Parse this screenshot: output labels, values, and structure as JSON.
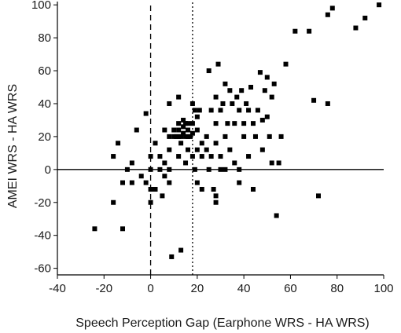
{
  "chart_data": {
    "type": "scatter",
    "title": "",
    "xlabel": "Speech Perception Gap (Earphone WRS - HA WRS)",
    "ylabel": "AMEI WRS - HA WRS",
    "xlim": [
      -40,
      100
    ],
    "ylim": [
      -64,
      102
    ],
    "xticks": [
      -40,
      -20,
      0,
      20,
      40,
      60,
      80,
      100
    ],
    "yticks": [
      -60,
      -40,
      -20,
      0,
      20,
      40,
      60,
      80,
      100
    ],
    "xtick_labels": [
      "-40",
      "-20",
      "0",
      "20",
      "40",
      "60",
      "80",
      "100"
    ],
    "ytick_labels": [
      "-60",
      "-40",
      "-20",
      "0",
      "20",
      "40",
      "60",
      "80",
      "100"
    ],
    "grid": false,
    "reference_lines": [
      {
        "orientation": "horizontal",
        "value": 0,
        "style": "solid"
      },
      {
        "orientation": "vertical",
        "value": 0,
        "style": "dashed"
      },
      {
        "orientation": "vertical",
        "value": 18,
        "style": "dotted"
      }
    ],
    "marker_color": "#000000",
    "points": [
      {
        "x": -24,
        "y": -36
      },
      {
        "x": -12,
        "y": -36
      },
      {
        "x": -16,
        "y": -20
      },
      {
        "x": -16,
        "y": 8
      },
      {
        "x": -14,
        "y": 16
      },
      {
        "x": -12,
        "y": -8
      },
      {
        "x": -10,
        "y": 0
      },
      {
        "x": -8,
        "y": 4
      },
      {
        "x": -8,
        "y": -8
      },
      {
        "x": -6,
        "y": 24
      },
      {
        "x": -4,
        "y": -4
      },
      {
        "x": -2,
        "y": -8
      },
      {
        "x": -2,
        "y": 34
      },
      {
        "x": 0,
        "y": 0
      },
      {
        "x": 0,
        "y": 8
      },
      {
        "x": 0,
        "y": -20
      },
      {
        "x": 0,
        "y": -12
      },
      {
        "x": 2,
        "y": 16
      },
      {
        "x": 2,
        "y": -12
      },
      {
        "x": 4,
        "y": 0
      },
      {
        "x": 4,
        "y": 8
      },
      {
        "x": 5,
        "y": -16
      },
      {
        "x": 6,
        "y": -4
      },
      {
        "x": 6,
        "y": 4
      },
      {
        "x": 6,
        "y": 24
      },
      {
        "x": 8,
        "y": -8
      },
      {
        "x": 8,
        "y": 12
      },
      {
        "x": 8,
        "y": 20
      },
      {
        "x": 8,
        "y": 0
      },
      {
        "x": 8,
        "y": 40
      },
      {
        "x": 9,
        "y": -53
      },
      {
        "x": 10,
        "y": 20
      },
      {
        "x": 10,
        "y": 24
      },
      {
        "x": 11,
        "y": 20
      },
      {
        "x": 12,
        "y": 20
      },
      {
        "x": 12,
        "y": 24
      },
      {
        "x": 12,
        "y": 28
      },
      {
        "x": 12,
        "y": 44
      },
      {
        "x": 12,
        "y": 8
      },
      {
        "x": 13,
        "y": -49
      },
      {
        "x": 13,
        "y": 20
      },
      {
        "x": 13,
        "y": 16
      },
      {
        "x": 14,
        "y": 22
      },
      {
        "x": 14,
        "y": 26
      },
      {
        "x": 14,
        "y": 30
      },
      {
        "x": 15,
        "y": 20
      },
      {
        "x": 15,
        "y": 28
      },
      {
        "x": 15,
        "y": 4
      },
      {
        "x": 16,
        "y": 24
      },
      {
        "x": 16,
        "y": 20
      },
      {
        "x": 16,
        "y": 28
      },
      {
        "x": 16,
        "y": 12
      },
      {
        "x": 17,
        "y": 20
      },
      {
        "x": 18,
        "y": 22
      },
      {
        "x": 18,
        "y": 28
      },
      {
        "x": 18,
        "y": 40
      },
      {
        "x": 18,
        "y": 8
      },
      {
        "x": 19,
        "y": 36
      },
      {
        "x": 19,
        "y": 0
      },
      {
        "x": 20,
        "y": 32
      },
      {
        "x": 20,
        "y": 24
      },
      {
        "x": 20,
        "y": 12
      },
      {
        "x": 20,
        "y": -8
      },
      {
        "x": 21,
        "y": 36
      },
      {
        "x": 22,
        "y": 16
      },
      {
        "x": 22,
        "y": 8
      },
      {
        "x": 22,
        "y": -12
      },
      {
        "x": 24,
        "y": 20
      },
      {
        "x": 24,
        "y": 12
      },
      {
        "x": 25,
        "y": 60
      },
      {
        "x": 25,
        "y": 0
      },
      {
        "x": 26,
        "y": 36
      },
      {
        "x": 26,
        "y": 8
      },
      {
        "x": 27,
        "y": -12
      },
      {
        "x": 28,
        "y": 44
      },
      {
        "x": 28,
        "y": 28
      },
      {
        "x": 28,
        "y": 16
      },
      {
        "x": 28,
        "y": -16
      },
      {
        "x": 28,
        "y": -20
      },
      {
        "x": 29,
        "y": 64
      },
      {
        "x": 30,
        "y": 36
      },
      {
        "x": 30,
        "y": 8
      },
      {
        "x": 30,
        "y": 0
      },
      {
        "x": 31,
        "y": 40
      },
      {
        "x": 32,
        "y": 52
      },
      {
        "x": 32,
        "y": 20
      },
      {
        "x": 32,
        "y": 0
      },
      {
        "x": 33,
        "y": 28
      },
      {
        "x": 34,
        "y": 48
      },
      {
        "x": 34,
        "y": 12
      },
      {
        "x": 35,
        "y": 40
      },
      {
        "x": 36,
        "y": 28
      },
      {
        "x": 36,
        "y": 4
      },
      {
        "x": 37,
        "y": 44
      },
      {
        "x": 38,
        "y": 36
      },
      {
        "x": 38,
        "y": 0
      },
      {
        "x": 38,
        "y": -8
      },
      {
        "x": 39,
        "y": 48
      },
      {
        "x": 40,
        "y": 28
      },
      {
        "x": 40,
        "y": 20
      },
      {
        "x": 41,
        "y": 40
      },
      {
        "x": 42,
        "y": 36
      },
      {
        "x": 42,
        "y": 8
      },
      {
        "x": 43,
        "y": 50
      },
      {
        "x": 44,
        "y": 28
      },
      {
        "x": 44,
        "y": -12
      },
      {
        "x": 45,
        "y": 20
      },
      {
        "x": 46,
        "y": 36
      },
      {
        "x": 47,
        "y": 59
      },
      {
        "x": 48,
        "y": 30
      },
      {
        "x": 48,
        "y": 12
      },
      {
        "x": 49,
        "y": 48
      },
      {
        "x": 50,
        "y": 32
      },
      {
        "x": 50,
        "y": 56
      },
      {
        "x": 51,
        "y": 20
      },
      {
        "x": 52,
        "y": 44
      },
      {
        "x": 52,
        "y": 4
      },
      {
        "x": 53,
        "y": 52
      },
      {
        "x": 54,
        "y": -28
      },
      {
        "x": 55,
        "y": 4
      },
      {
        "x": 56,
        "y": 20
      },
      {
        "x": 58,
        "y": 64
      },
      {
        "x": 62,
        "y": 84
      },
      {
        "x": 68,
        "y": 84
      },
      {
        "x": 70,
        "y": 42
      },
      {
        "x": 72,
        "y": -16
      },
      {
        "x": 76,
        "y": 40
      },
      {
        "x": 76,
        "y": 94
      },
      {
        "x": 78,
        "y": 98
      },
      {
        "x": 88,
        "y": 86
      },
      {
        "x": 92,
        "y": 92
      },
      {
        "x": 98,
        "y": 100
      }
    ]
  }
}
